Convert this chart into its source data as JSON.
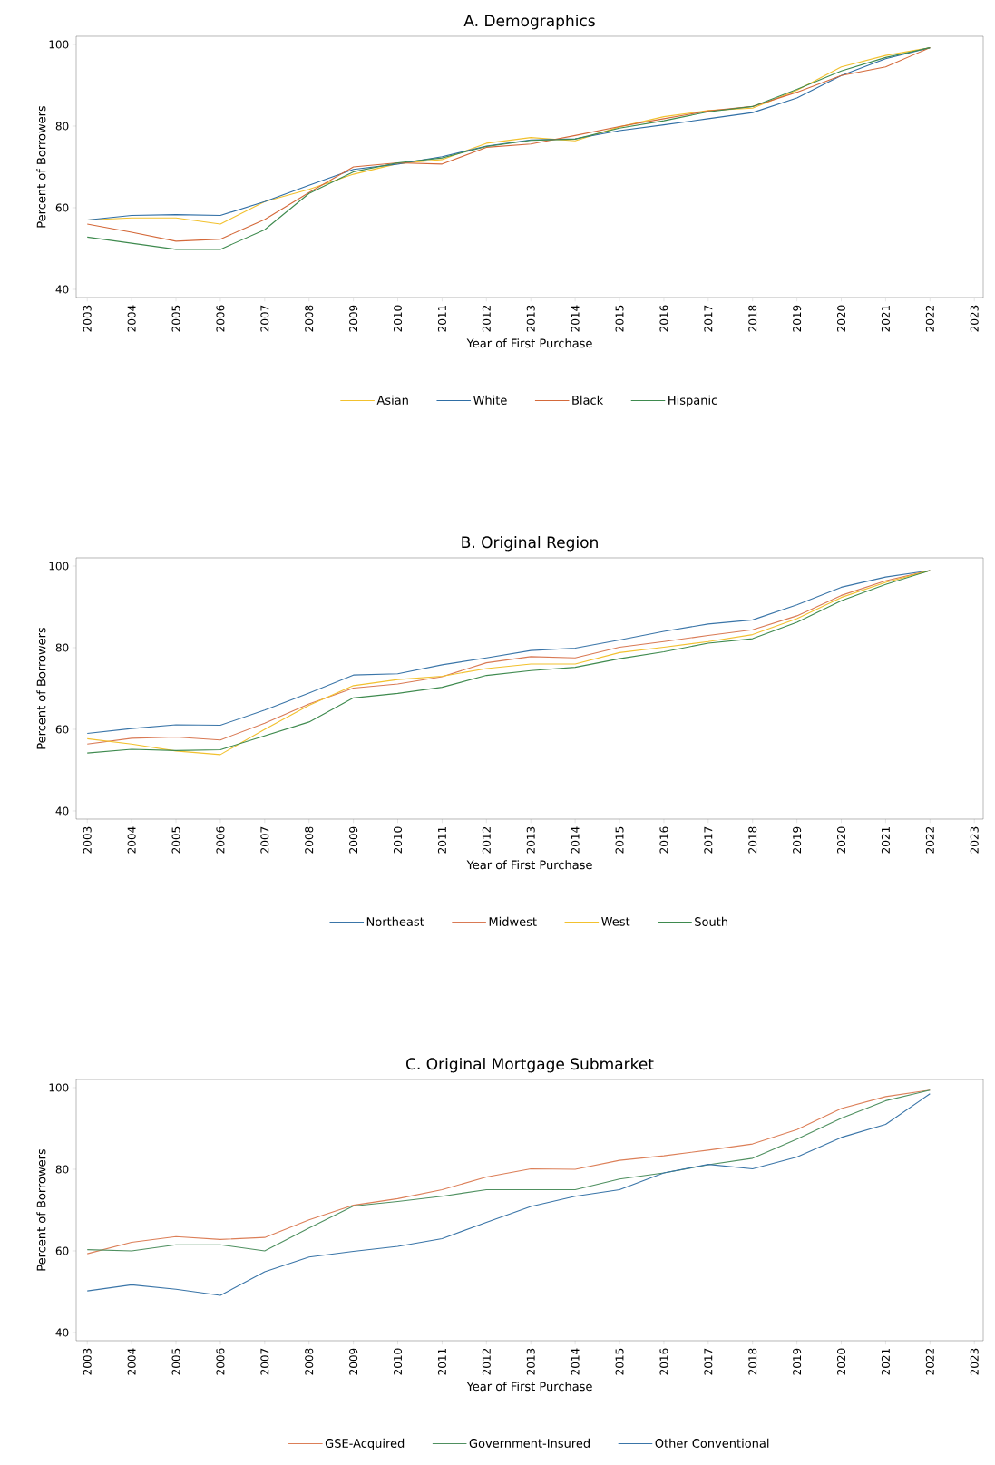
{
  "chart_data": [
    {
      "type": "line",
      "title": "A. Demographics",
      "xlabel": "Year of First Purchase",
      "ylabel": "Percent of Borrowers",
      "legend": "bottom",
      "xlim": [
        2002.75,
        2023.2
      ],
      "xticks": [
        2003,
        2004,
        2005,
        2006,
        2007,
        2008,
        2009,
        2010,
        2011,
        2012,
        2013,
        2014,
        2015,
        2016,
        2017,
        2018,
        2019,
        2020,
        2021,
        2022,
        2023
      ],
      "ylim": [
        38,
        102
      ],
      "yticks": [
        40,
        60,
        80,
        100
      ],
      "x": [
        2003,
        2004,
        2005,
        2006,
        2007,
        2008,
        2009,
        2010,
        2011,
        2012,
        2013,
        2014,
        2015,
        2016,
        2017,
        2018,
        2019,
        2020,
        2021,
        2022
      ],
      "series": [
        {
          "name": "Asian",
          "color": "#f2c12e",
          "values": [
            57.0,
            57.5,
            57.5,
            56.0,
            61.5,
            64.5,
            68.2,
            70.8,
            71.8,
            75.8,
            77.2,
            76.4,
            79.8,
            82.3,
            83.8,
            84.4,
            88.8,
            94.5,
            97.3,
            99.2
          ]
        },
        {
          "name": "White",
          "color": "#2f6ea5",
          "values": [
            57.0,
            58.1,
            58.3,
            58.1,
            61.5,
            65.5,
            69.4,
            70.7,
            72.5,
            75.1,
            76.6,
            76.9,
            78.9,
            80.3,
            81.8,
            83.3,
            86.9,
            92.4,
            96.5,
            99.2
          ]
        },
        {
          "name": "Black",
          "color": "#d4693a",
          "values": [
            56.0,
            54.0,
            51.8,
            52.3,
            57.1,
            63.7,
            70.0,
            71.0,
            70.7,
            74.8,
            75.6,
            77.7,
            79.9,
            81.8,
            83.7,
            84.8,
            88.3,
            92.4,
            94.5,
            99.2
          ]
        },
        {
          "name": "Hispanic",
          "color": "#3e8a4e",
          "values": [
            52.8,
            51.3,
            49.8,
            49.8,
            54.6,
            63.5,
            68.8,
            71.0,
            72.2,
            75.0,
            76.5,
            76.8,
            79.5,
            81.3,
            83.5,
            84.8,
            89.0,
            93.5,
            96.8,
            99.2
          ]
        }
      ]
    },
    {
      "type": "line",
      "title": "B. Original Region",
      "xlabel": "Year of First Purchase",
      "ylabel": "Percent of Borrowers",
      "legend": "bottom",
      "xlim": [
        2002.75,
        2023.2
      ],
      "xticks": [
        2003,
        2004,
        2005,
        2006,
        2007,
        2008,
        2009,
        2010,
        2011,
        2012,
        2013,
        2014,
        2015,
        2016,
        2017,
        2018,
        2019,
        2020,
        2021,
        2022,
        2023
      ],
      "ylim": [
        38,
        102
      ],
      "yticks": [
        40,
        60,
        80,
        100
      ],
      "x": [
        2003,
        2004,
        2005,
        2006,
        2007,
        2008,
        2009,
        2010,
        2011,
        2012,
        2013,
        2014,
        2015,
        2016,
        2017,
        2018,
        2019,
        2020,
        2021,
        2022
      ],
      "series": [
        {
          "name": "Northeast",
          "color": "#3a75a8",
          "values": [
            59.0,
            60.2,
            61.1,
            61.0,
            64.7,
            68.9,
            73.3,
            73.6,
            75.8,
            77.5,
            79.3,
            79.9,
            81.9,
            84.0,
            85.8,
            86.8,
            90.5,
            94.8,
            97.3,
            98.9
          ]
        },
        {
          "name": "Midwest",
          "color": "#d97a55",
          "values": [
            56.4,
            57.8,
            58.1,
            57.4,
            61.5,
            66.2,
            70.1,
            71.1,
            72.9,
            76.3,
            77.8,
            77.5,
            80.1,
            81.5,
            83.0,
            84.4,
            87.8,
            92.8,
            96.4,
            98.9
          ]
        },
        {
          "name": "West",
          "color": "#f2c12e",
          "values": [
            57.7,
            56.4,
            54.7,
            53.8,
            60.0,
            65.9,
            70.7,
            72.2,
            73.0,
            74.9,
            76.0,
            76.0,
            78.8,
            80.1,
            81.5,
            83.2,
            87.1,
            92.3,
            96.0,
            98.9
          ]
        },
        {
          "name": "South",
          "color": "#3e8a4e",
          "values": [
            54.2,
            55.1,
            54.8,
            55.0,
            58.4,
            61.8,
            67.7,
            68.8,
            70.3,
            73.2,
            74.4,
            75.2,
            77.3,
            79.0,
            81.1,
            82.2,
            86.2,
            91.5,
            95.5,
            98.9
          ]
        }
      ]
    },
    {
      "type": "line",
      "title": "C. Original Mortgage Submarket",
      "xlabel": "Year of First Purchase",
      "ylabel": "Percent of Borrowers",
      "legend": "bottom",
      "xlim": [
        2002.75,
        2023.2
      ],
      "xticks": [
        2003,
        2004,
        2005,
        2006,
        2007,
        2008,
        2009,
        2010,
        2011,
        2012,
        2013,
        2014,
        2015,
        2016,
        2017,
        2018,
        2019,
        2020,
        2021,
        2022,
        2023
      ],
      "ylim": [
        38,
        102
      ],
      "yticks": [
        40,
        60,
        80,
        100
      ],
      "x": [
        2003,
        2004,
        2005,
        2006,
        2007,
        2008,
        2009,
        2010,
        2011,
        2012,
        2013,
        2014,
        2015,
        2016,
        2017,
        2018,
        2019,
        2020,
        2021,
        2022
      ],
      "series": [
        {
          "name": "GSE-Acquired",
          "color": "#dc7f58",
          "values": [
            59.3,
            62.1,
            63.5,
            62.8,
            63.3,
            67.6,
            71.2,
            72.8,
            75.0,
            78.1,
            80.1,
            80.0,
            82.2,
            83.3,
            84.7,
            86.2,
            89.7,
            94.9,
            97.8,
            99.4
          ]
        },
        {
          "name": "Government-Insured",
          "color": "#4f9060",
          "values": [
            60.3,
            60.0,
            61.5,
            61.5,
            60.0,
            65.6,
            71.0,
            72.1,
            73.4,
            75.0,
            75.0,
            75.0,
            77.6,
            79.1,
            81.1,
            82.7,
            87.4,
            92.5,
            96.8,
            99.4
          ]
        },
        {
          "name": "Other Conventional",
          "color": "#3a75a8",
          "values": [
            50.2,
            51.7,
            50.6,
            49.1,
            54.9,
            58.5,
            59.9,
            61.1,
            63.0,
            67.0,
            70.9,
            73.4,
            75.0,
            79.1,
            81.2,
            80.1,
            83.0,
            87.8,
            91.0,
            98.5
          ]
        }
      ]
    }
  ]
}
